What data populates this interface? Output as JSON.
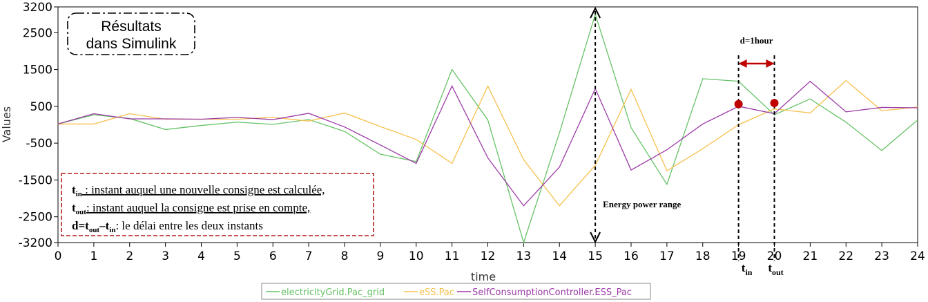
{
  "chart_data": {
    "type": "line",
    "xlabel": "time",
    "ylabel": "Values",
    "xlim": [
      0,
      24
    ],
    "ylim": [
      -3200,
      3200
    ],
    "x_ticks": [
      0,
      1,
      2,
      3,
      4,
      5,
      6,
      7,
      8,
      9,
      10,
      11,
      12,
      13,
      14,
      15,
      16,
      17,
      18,
      19,
      20,
      21,
      22,
      23,
      24
    ],
    "y_ticks": [
      3200,
      2500,
      1500,
      500,
      -500,
      -1500,
      -2500,
      -3200
    ],
    "grid": false,
    "legend_position": "bottom",
    "x": [
      0,
      1,
      2,
      3,
      4,
      5,
      6,
      7,
      8,
      9,
      10,
      11,
      12,
      13,
      14,
      15,
      16,
      17,
      18,
      19,
      20,
      21,
      22,
      23,
      24
    ],
    "series": [
      {
        "name": "electricityGrid.Pac_grid",
        "color": "#66c266",
        "values": [
          20,
          270,
          170,
          -130,
          -20,
          70,
          10,
          140,
          -180,
          -800,
          -1000,
          1500,
          130,
          -3200,
          -220,
          3000,
          -80,
          -1620,
          1250,
          1180,
          270,
          700,
          70,
          -700,
          130
        ]
      },
      {
        "name": "eSS.Pac",
        "color": "#f6c04c",
        "values": [
          20,
          20,
          300,
          150,
          150,
          150,
          200,
          100,
          320,
          -50,
          -400,
          -1050,
          1050,
          -950,
          -2200,
          -1100,
          960,
          -1250,
          -650,
          0,
          430,
          320,
          1200,
          380,
          480
        ]
      },
      {
        "name": "SelfConsumptionController.ESS_Pac",
        "color": "#9b3aa6",
        "values": [
          20,
          300,
          160,
          160,
          150,
          200,
          140,
          310,
          -60,
          -550,
          -1050,
          1050,
          -900,
          -2200,
          -1150,
          980,
          -1230,
          -680,
          20,
          500,
          300,
          1180,
          350,
          470,
          460
        ]
      }
    ],
    "annotations": {
      "results_box": {
        "line1": "Résultats",
        "line2": "dans Simulink"
      },
      "energy_range": {
        "label": "Energy power range",
        "x": 15
      },
      "delay": {
        "label": "d=1hour",
        "x_from": 19,
        "x_to": 20
      },
      "markers": [
        {
          "x": 19,
          "y": 560
        },
        {
          "x": 20,
          "y": 590
        }
      ],
      "t_in_label": {
        "base": "t",
        "sub": "in"
      },
      "t_out_label": {
        "base": "t",
        "sub": "out"
      },
      "legend_box": {
        "line1": {
          "base": "t",
          "sub": "in",
          "text": " : instant auquel une nouvelle consigne est calculée,"
        },
        "line2": {
          "base": "t",
          "sub": "out",
          "text": ": instant auquel la consigne est prise en compte,"
        },
        "line3": {
          "p1": "d=t",
          "s1": "out",
          "p2": "–t",
          "s2": "in",
          "text": ": le délai entre les deux instants"
        }
      }
    }
  }
}
